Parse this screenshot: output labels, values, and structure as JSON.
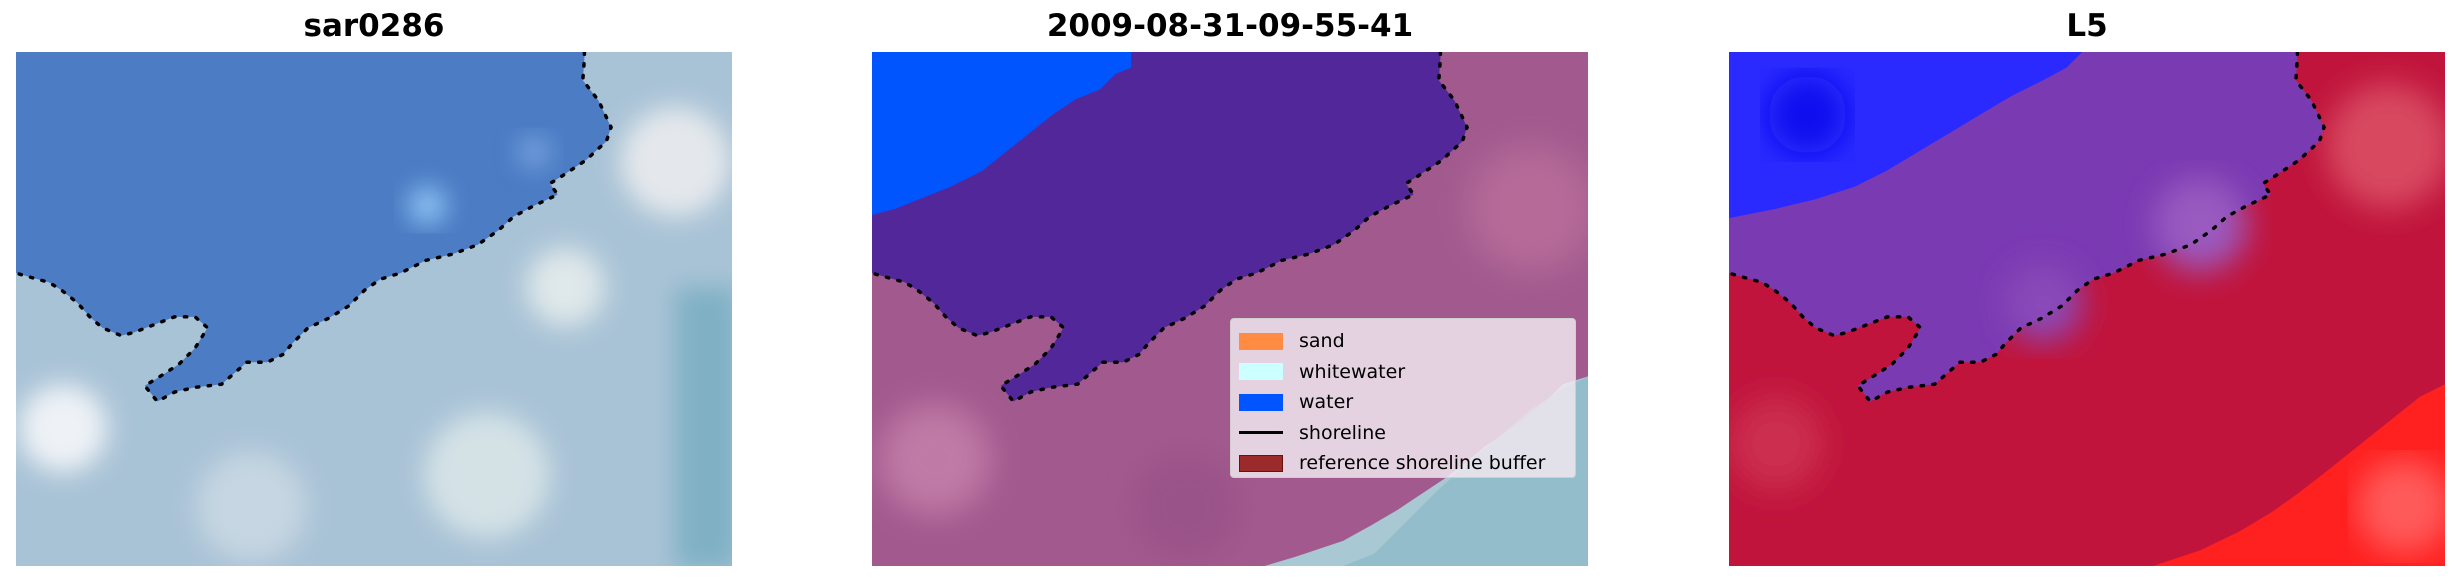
{
  "panels": [
    {
      "title": "sar0286",
      "type": "rgb-image"
    },
    {
      "title": "2009-08-31-09-55-41",
      "type": "classified-image"
    },
    {
      "title": "L5",
      "type": "index-image"
    }
  ],
  "legend": {
    "items": [
      {
        "label": "sand",
        "kind": "patch",
        "color": "#ff8c42",
        "edge": "#ff8c42"
      },
      {
        "label": "whitewater",
        "kind": "patch",
        "color": "#ccffff",
        "edge": "#ccffff"
      },
      {
        "label": "water",
        "kind": "patch",
        "color": "#0055ff",
        "edge": "#0055ff"
      },
      {
        "label": "shoreline",
        "kind": "line",
        "color": "#000000"
      },
      {
        "label": "reference shoreline buffer",
        "kind": "patch",
        "color": "#9b2a2a",
        "edge": "#6b1010"
      }
    ]
  },
  "colors": {
    "water_rgb": "#4b7cc4",
    "land_rgb": "#a9c3d6",
    "water_class": "#0055ff",
    "ocean_overlay": "#52279a",
    "land_overlay": "#a25a8e",
    "index_blue": "#2a2aff",
    "index_purple": "#7a3ab2",
    "index_red": "#c0143c",
    "index_bright_red": "#ff2020"
  }
}
